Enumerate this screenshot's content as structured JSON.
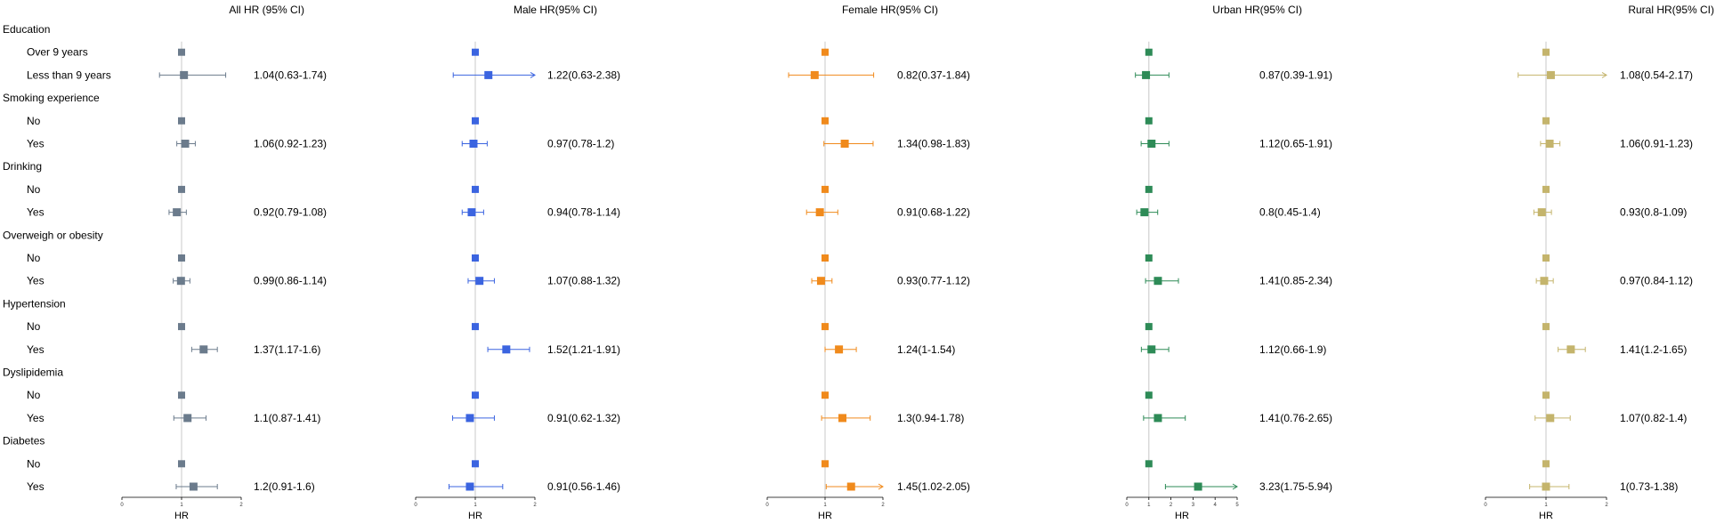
{
  "chart_data": {
    "type": "forest",
    "rows": [
      {
        "label": "Education",
        "kind": "header"
      },
      {
        "label": "Over 9 years",
        "kind": "ref"
      },
      {
        "label": "Less than 9 years",
        "kind": "data"
      },
      {
        "label": "Smoking experience",
        "kind": "header"
      },
      {
        "label": "No",
        "kind": "ref"
      },
      {
        "label": "Yes",
        "kind": "data"
      },
      {
        "label": "Drinking",
        "kind": "header"
      },
      {
        "label": "No",
        "kind": "ref"
      },
      {
        "label": "Yes",
        "kind": "data"
      },
      {
        "label": "Overweigh or obesity",
        "kind": "header"
      },
      {
        "label": "No",
        "kind": "ref"
      },
      {
        "label": "Yes",
        "kind": "data"
      },
      {
        "label": "Hypertension",
        "kind": "header"
      },
      {
        "label": "No",
        "kind": "ref"
      },
      {
        "label": "Yes",
        "kind": "data"
      },
      {
        "label": "Dyslipidemia",
        "kind": "header"
      },
      {
        "label": "No",
        "kind": "ref"
      },
      {
        "label": "Yes",
        "kind": "data"
      },
      {
        "label": "Diabetes",
        "kind": "header"
      },
      {
        "label": "No",
        "kind": "ref"
      },
      {
        "label": "Yes",
        "kind": "data"
      }
    ],
    "panels": [
      {
        "title": "All HR (95% CI)",
        "color": "#6b7b8c",
        "xlim": [
          0,
          2
        ],
        "ticks": [
          "0",
          "1",
          "2"
        ],
        "xlabel": "HR",
        "estimates": [
          [
            1.04,
            0.63,
            1.74
          ],
          [
            1.06,
            0.92,
            1.23
          ],
          [
            0.92,
            0.79,
            1.08
          ],
          [
            0.99,
            0.86,
            1.14
          ],
          [
            1.37,
            1.17,
            1.6
          ],
          [
            1.1,
            0.87,
            1.41
          ],
          [
            1.2,
            0.91,
            1.6
          ]
        ],
        "texts": [
          "1.04(0.63-1.74)",
          "1.06(0.92-1.23)",
          "0.92(0.79-1.08)",
          "0.99(0.86-1.14)",
          "1.37(1.17-1.6)",
          "1.1(0.87-1.41)",
          "1.2(0.91-1.6)"
        ]
      },
      {
        "title": "Male HR(95% CI)",
        "color": "#3b64e0",
        "xlim": [
          0,
          2
        ],
        "ticks": [
          "0",
          "1",
          "2"
        ],
        "xlabel": "HR",
        "estimates": [
          [
            1.22,
            0.63,
            2.38
          ],
          [
            0.97,
            0.78,
            1.2
          ],
          [
            0.94,
            0.78,
            1.14
          ],
          [
            1.07,
            0.88,
            1.32
          ],
          [
            1.52,
            1.21,
            1.91
          ],
          [
            0.91,
            0.62,
            1.32
          ],
          [
            0.91,
            0.56,
            1.46
          ]
        ],
        "texts": [
          "1.22(0.63-2.38)",
          "0.97(0.78-1.2)",
          "0.94(0.78-1.14)",
          "1.07(0.88-1.32)",
          "1.52(1.21-1.91)",
          "0.91(0.62-1.32)",
          "0.91(0.56-1.46)"
        ]
      },
      {
        "title": "Female HR(95% CI)",
        "color": "#f08a1c",
        "xlim": [
          0,
          2
        ],
        "ticks": [
          "0",
          "1",
          "2"
        ],
        "xlabel": "HR",
        "estimates": [
          [
            0.82,
            0.37,
            1.84
          ],
          [
            1.34,
            0.98,
            1.83
          ],
          [
            0.91,
            0.68,
            1.22
          ],
          [
            0.93,
            0.77,
            1.12
          ],
          [
            1.24,
            1,
            1.54
          ],
          [
            1.3,
            0.94,
            1.78
          ],
          [
            1.45,
            1.02,
            2.05
          ]
        ],
        "texts": [
          "0.82(0.37-1.84)",
          "1.34(0.98-1.83)",
          "0.91(0.68-1.22)",
          "0.93(0.77-1.12)",
          "1.24(1-1.54)",
          "1.3(0.94-1.78)",
          "1.45(1.02-2.05)"
        ]
      },
      {
        "title": "Urban HR(95% CI)",
        "color": "#2e8b57",
        "xlim": [
          0,
          5
        ],
        "ticks": [
          "0",
          "1",
          "2",
          "3",
          "4",
          "5"
        ],
        "xlabel": "HR",
        "estimates": [
          [
            0.87,
            0.39,
            1.91
          ],
          [
            1.12,
            0.65,
            1.91
          ],
          [
            0.8,
            0.45,
            1.4
          ],
          [
            1.41,
            0.85,
            2.34
          ],
          [
            1.12,
            0.66,
            1.9
          ],
          [
            1.41,
            0.76,
            2.65
          ],
          [
            3.23,
            1.75,
            5.94
          ]
        ],
        "texts": [
          "0.87(0.39-1.91)",
          "1.12(0.65-1.91)",
          "0.8(0.45-1.4)",
          "1.41(0.85-2.34)",
          "1.12(0.66-1.9)",
          "1.41(0.76-2.65)",
          "3.23(1.75-5.94)"
        ]
      },
      {
        "title": "Rural HR(95% CI)",
        "color": "#c4b46c",
        "xlim": [
          0,
          2
        ],
        "ticks": [
          "0",
          "1",
          "2"
        ],
        "xlabel": "HR",
        "estimates": [
          [
            1.08,
            0.54,
            2.17
          ],
          [
            1.06,
            0.91,
            1.23
          ],
          [
            0.93,
            0.8,
            1.09
          ],
          [
            0.97,
            0.84,
            1.12
          ],
          [
            1.41,
            1.2,
            1.65
          ],
          [
            1.07,
            0.82,
            1.4
          ],
          [
            1,
            0.73,
            1.38
          ]
        ],
        "texts": [
          "1.08(0.54-2.17)",
          "1.06(0.91-1.23)",
          "0.93(0.8-1.09)",
          "0.97(0.84-1.12)",
          "1.41(1.2-1.65)",
          "1.07(0.82-1.4)",
          "1(0.73-1.38)"
        ]
      }
    ]
  }
}
